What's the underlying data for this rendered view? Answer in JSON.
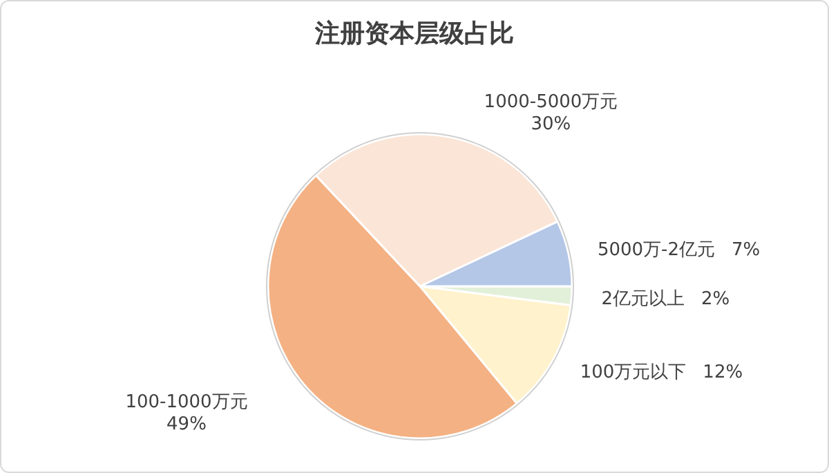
{
  "chart_data": {
    "type": "pie",
    "title": "注册资本层级占比",
    "categories": [
      "2亿元以上",
      "100万元以下",
      "100-1000万元",
      "1000-5000万元",
      "5000万-2亿元"
    ],
    "values": [
      2,
      12,
      49,
      30,
      7
    ],
    "value_labels": [
      "2%",
      "12%",
      "49%",
      "30%",
      "7%"
    ],
    "colors": [
      "#e2f0d9",
      "#fff2cc",
      "#f4b183",
      "#fbe5d6",
      "#b4c7e7"
    ]
  }
}
